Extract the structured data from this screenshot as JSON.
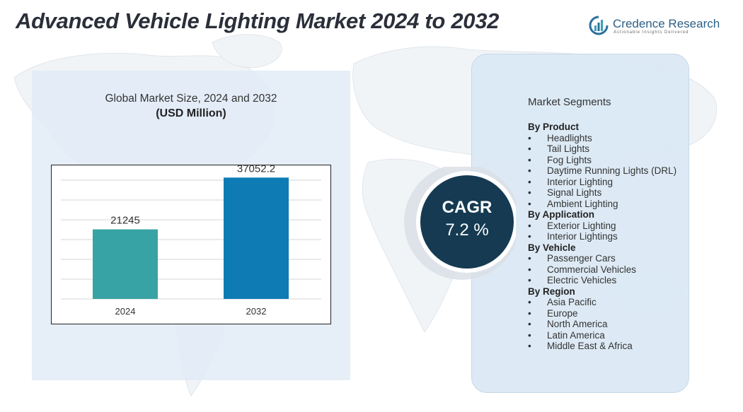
{
  "title": "Advanced Vehicle Lighting Market 2024 to 2032",
  "logo": {
    "name": "Credence Research",
    "tagline": "Actionable Insights Delivered",
    "icon": "bar-chart-logo-icon"
  },
  "colors": {
    "bar_2024": "#38a3a5",
    "bar_2032": "#0e7bb4",
    "cagr_circle": "#153a52",
    "panel": "#e1ecf6"
  },
  "chart_data": {
    "type": "bar",
    "title": "Global Market Size, 2024 and 2032",
    "unit_label": "(USD Million)",
    "categories": [
      "2024",
      "2032"
    ],
    "values": [
      21245,
      37052.2
    ],
    "value_labels": [
      "21245",
      "37052.2"
    ],
    "ylim": [
      0,
      41000
    ],
    "grid": true,
    "legend": "none"
  },
  "cagr": {
    "label": "CAGR",
    "value": "7.2 %"
  },
  "segments": {
    "title": "Market Segments",
    "groups": [
      {
        "heading": "By  Product",
        "items": [
          "Headlights",
          "Tail Lights",
          "Fog Lights",
          "Daytime Running Lights (DRL)",
          "Interior Lighting",
          "Signal Lights",
          "Ambient Lighting"
        ]
      },
      {
        "heading": "By Application",
        "items": [
          "Exterior Lighting",
          "Interior Lightings"
        ]
      },
      {
        "heading": "By Vehicle",
        "items": [
          "Passenger Cars",
          "Commercial Vehicles",
          "Electric Vehicles"
        ]
      },
      {
        "heading": "By Region",
        "items": [
          "Asia Pacific",
          "Europe",
          "North America",
          "Latin America",
          "Middle East & Africa"
        ]
      }
    ]
  }
}
